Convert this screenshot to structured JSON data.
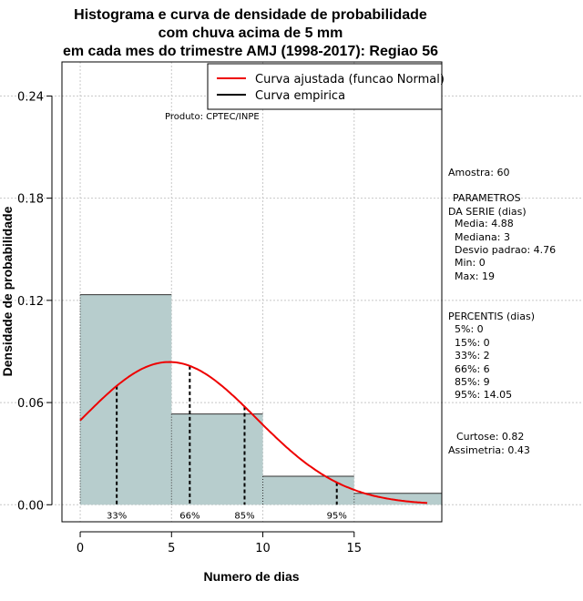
{
  "chart_data": {
    "type": "bar",
    "title_lines": [
      "Histograma e curva de densidade de probabilidade",
      "com chuva acima de 5 mm",
      "em cada mes do trimestre AMJ (1998-2017): Regiao 56"
    ],
    "xlabel": "Numero de dias",
    "ylabel": "Densidade de probabilidade",
    "xlim": [
      -1,
      19.8
    ],
    "ylim": [
      -0.01,
      0.26
    ],
    "x_ticks": [
      "0",
      "5",
      "10",
      "15"
    ],
    "x_tick_values": [
      0,
      5,
      10,
      15
    ],
    "y_ticks": [
      "0.00",
      "0.06",
      "0.12",
      "0.18",
      "0.24"
    ],
    "y_tick_values": [
      0,
      0.06,
      0.12,
      0.18,
      0.24
    ],
    "grid": true,
    "bins": [
      {
        "x0": 0,
        "x1": 5,
        "density": 0.1233
      },
      {
        "x0": 5,
        "x1": 10,
        "density": 0.0533
      },
      {
        "x0": 10,
        "x1": 15,
        "density": 0.0167
      },
      {
        "x0": 15,
        "x1": 20,
        "density": 0.0067
      }
    ],
    "fitted_curve": {
      "label": "Curva ajustada (funcao Normal)",
      "distribution": "normal",
      "mean": 4.88,
      "sd": 4.76,
      "x_range": [
        0,
        19
      ],
      "color": "#ee0000"
    },
    "empirical_curve": {
      "label": "Curva empirica",
      "color": "#000000"
    },
    "percentile_lines": [
      {
        "label": "33%",
        "x": 2
      },
      {
        "label": "66%",
        "x": 6
      },
      {
        "label": "85%",
        "x": 9
      },
      {
        "label": "95%",
        "x": 14.05
      }
    ],
    "bar_color": "#b7cdcd",
    "produto": "Produto: CPTEC/INPE"
  },
  "stats": {
    "amostra": "Amostra: 60",
    "parametros_title_1": "PARAMETROS",
    "parametros_title_2": "DA SERIE (dias)",
    "media": "Media: 4.88",
    "mediana": "Mediana: 3",
    "desvio": "Desvio padrao: 4.76",
    "min": "Min: 0",
    "max": "Max: 19",
    "percentis_title": "PERCENTIS (dias)",
    "p5": "5%: 0",
    "p15": "15%: 0",
    "p33": "33%: 2",
    "p66": "66%: 6",
    "p85": "85%: 9",
    "p95": "95%: 14.05",
    "curtose": "Curtose: 0.82",
    "assimetria": "Assimetria: 0.43"
  }
}
